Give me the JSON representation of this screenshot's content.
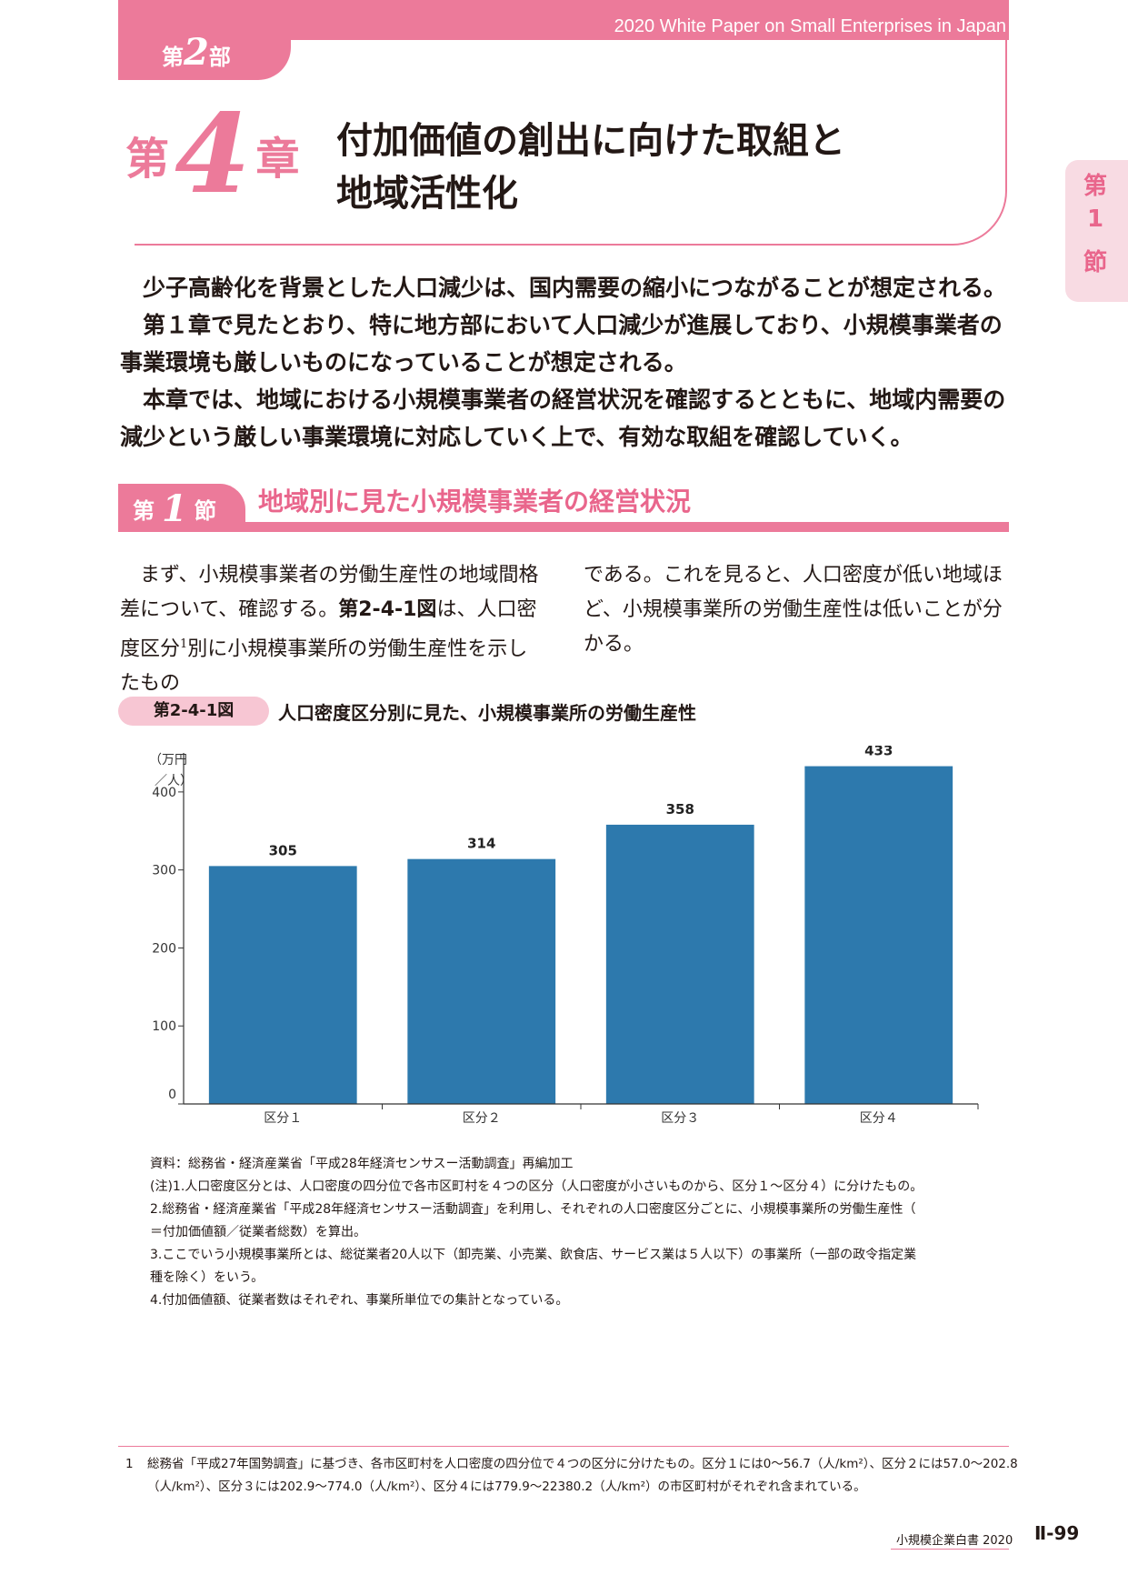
{
  "header": {
    "part": {
      "prefix": "第",
      "num": "2",
      "suffix": "部"
    },
    "series_title": "2020 White Paper on Small Enterprises in Japan",
    "chapter": {
      "prefix": "第",
      "num": "4",
      "suffix": "章"
    },
    "chapter_title_lines": [
      "付加価値の創出に向けた取組と",
      "地域活性化"
    ]
  },
  "side_tab": [
    "第",
    "1",
    "節"
  ],
  "intro": [
    "少子高齢化を背景とした人口減少は、国内需要の縮小につながることが想定される。",
    "第１章で見たとおり、特に地方部において人口減少が進展しており、小規模事業者の事業環境も厳しいものになっていることが想定される。",
    "本章では、地域における小規模事業者の経営状況を確認するとともに、地域内需要の減少という厳しい事業環境に対応していく上で、有効な取組を確認していく。"
  ],
  "section": {
    "prefix": "第",
    "num": "1",
    "suffix": "節",
    "title": "地域別に見た小規模事業者の経営状況"
  },
  "body": {
    "left_a": "まず、小規模事業者の労働生産性の地域間格差について、確認する。",
    "left_fig": "第2-4-1図",
    "left_b": "は、人口密度区分",
    "left_sup": "1",
    "left_c": "別に小規模事業所の労働生産性を示したもの",
    "right": "である。これを見ると、人口密度が低い地域ほど、小規模事業所の労働生産性は低いことが分かる。"
  },
  "figure": {
    "number": "第2-4-1図",
    "title": "人口密度区分別に見た、小規模事業所の労働生産性"
  },
  "chart_data": {
    "type": "bar",
    "categories": [
      "区分１",
      "区分２",
      "区分３",
      "区分４"
    ],
    "values": [
      305,
      314,
      358,
      433
    ],
    "ylabel_lines": [
      "（万円",
      "／人）"
    ],
    "ylim": [
      0,
      450
    ],
    "yticks": [
      0,
      100,
      200,
      300,
      400
    ],
    "bar_color": "#2d79ad",
    "data_labels": true,
    "grid": false
  },
  "notes": [
    "資料：総務省・経済産業省「平成28年経済センサスー活動調査」再編加工",
    "(注)1.人口密度区分とは、人口密度の四分位で各市区町村を４つの区分（人口密度が小さいものから、区分１～区分４）に分けたもの。",
    "2.総務省・経済産業省「平成28年経済センサスー活動調査」を利用し、それぞれの人口密度区分ごとに、小規模事業所の労働生産性（",
    "＝付加価値額／従業者総数）を算出。",
    "3.ここでいう小規模事業所とは、総従業者20人以下（卸売業、小売業、飲食店、サービス業は５人以下）の事業所（一部の政令指定業",
    "種を除く）をいう。",
    "4.付加価値額、従業者数はそれぞれ、事業所単位での集計となっている。"
  ],
  "footnote": {
    "num": "1",
    "line1": "総務省「平成27年国勢調査」に基づき、各市区町村を人口密度の四分位で４つの区分に分けたもの。区分１には0～56.7（人/km²）、区分２には57.0～202.8",
    "line2": "（人/km²）、区分３には202.9～774.0（人/km²）、区分４には779.9～22380.2（人/km²）の市区町村がそれぞれ含まれている。"
  },
  "footer": {
    "publication": "小規模企業白書 2020",
    "page": "Ⅱ-99"
  },
  "colors": {
    "accent": "#ec7a9a",
    "accent_light": "#f8dbe3",
    "bar": "#2d79ad"
  }
}
